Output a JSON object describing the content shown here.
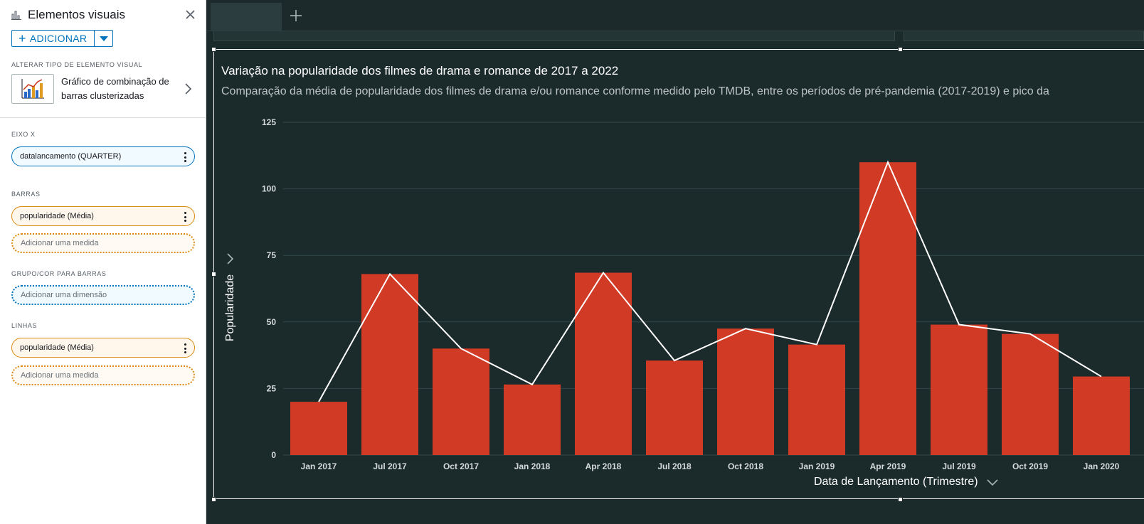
{
  "panel": {
    "title": "Elementos visuais",
    "add_label": "ADICIONAR",
    "change_type_label": "ALTERAR TIPO DE ELEMENTO VISUAL",
    "visual_type_name": "Gráfico de combinação de barras clusterizadas",
    "x_axis_label": "EIXO X",
    "x_axis_field": "datalancamento (QUARTER)",
    "bars_label": "BARRAS",
    "bars_field": "popularidade (Média)",
    "bars_add": "Adicionar uma medida",
    "group_label": "GRUPO/COR PARA BARRAS",
    "group_add": "Adicionar uma dimensão",
    "lines_label": "LINHAS",
    "lines_field": "popularidade (Média)",
    "lines_add": "Adicionar uma medida"
  },
  "visual": {
    "title": "Variação na popularidade dos filmes de drama e romance de 2017 a 2022",
    "subtitle": "Comparação da média de popularidade dos filmes de drama e/ou romance conforme medido pelo TMDB, entre os períodos de pré-pandemia (2017-2019) e pico da"
  },
  "colors": {
    "bar": "#d13b26",
    "line": "#ffffff",
    "background": "#1b2a2b",
    "grid": "#34494a",
    "accent": "#0073bb",
    "measure": "#d98b13"
  },
  "icons": {
    "panel": "bar-chart-icon",
    "close": "close-icon",
    "add": "plus-icon",
    "caret": "caret-down-icon",
    "visual_type": "combo-chart-thumbnail",
    "next": "chevron-right-icon",
    "menu": "kebab-menu-icon",
    "tab_add": "plus-icon",
    "axis_menu": "chevron-down-icon"
  },
  "chart_data": {
    "type": "bar",
    "combo_line": true,
    "title": "Variação na popularidade dos filmes de drama e romance de 2017 a 2022",
    "xlabel": "Data de Lançamento (Trimestre)",
    "ylabel": "Popularidade",
    "categories": [
      "Jan 2017",
      "Jul 2017",
      "Oct 2017",
      "Jan 2018",
      "Apr 2018",
      "Jul 2018",
      "Oct 2018",
      "Jan 2019",
      "Apr 2019",
      "Jul 2019",
      "Oct 2019",
      "Jan 2020"
    ],
    "series": [
      {
        "type": "bar",
        "values": [
          20,
          68,
          40,
          26.5,
          68.5,
          35.5,
          47.5,
          41.5,
          110,
          49,
          45.5,
          29.5
        ]
      },
      {
        "type": "line",
        "values": [
          20,
          68,
          40,
          26.5,
          68.5,
          35.5,
          47.5,
          41.5,
          110,
          49,
          45.5,
          29.5
        ]
      }
    ],
    "ylim": [
      0,
      125
    ],
    "yticks": [
      0,
      25,
      50,
      75,
      100,
      125
    ],
    "grid": true
  }
}
